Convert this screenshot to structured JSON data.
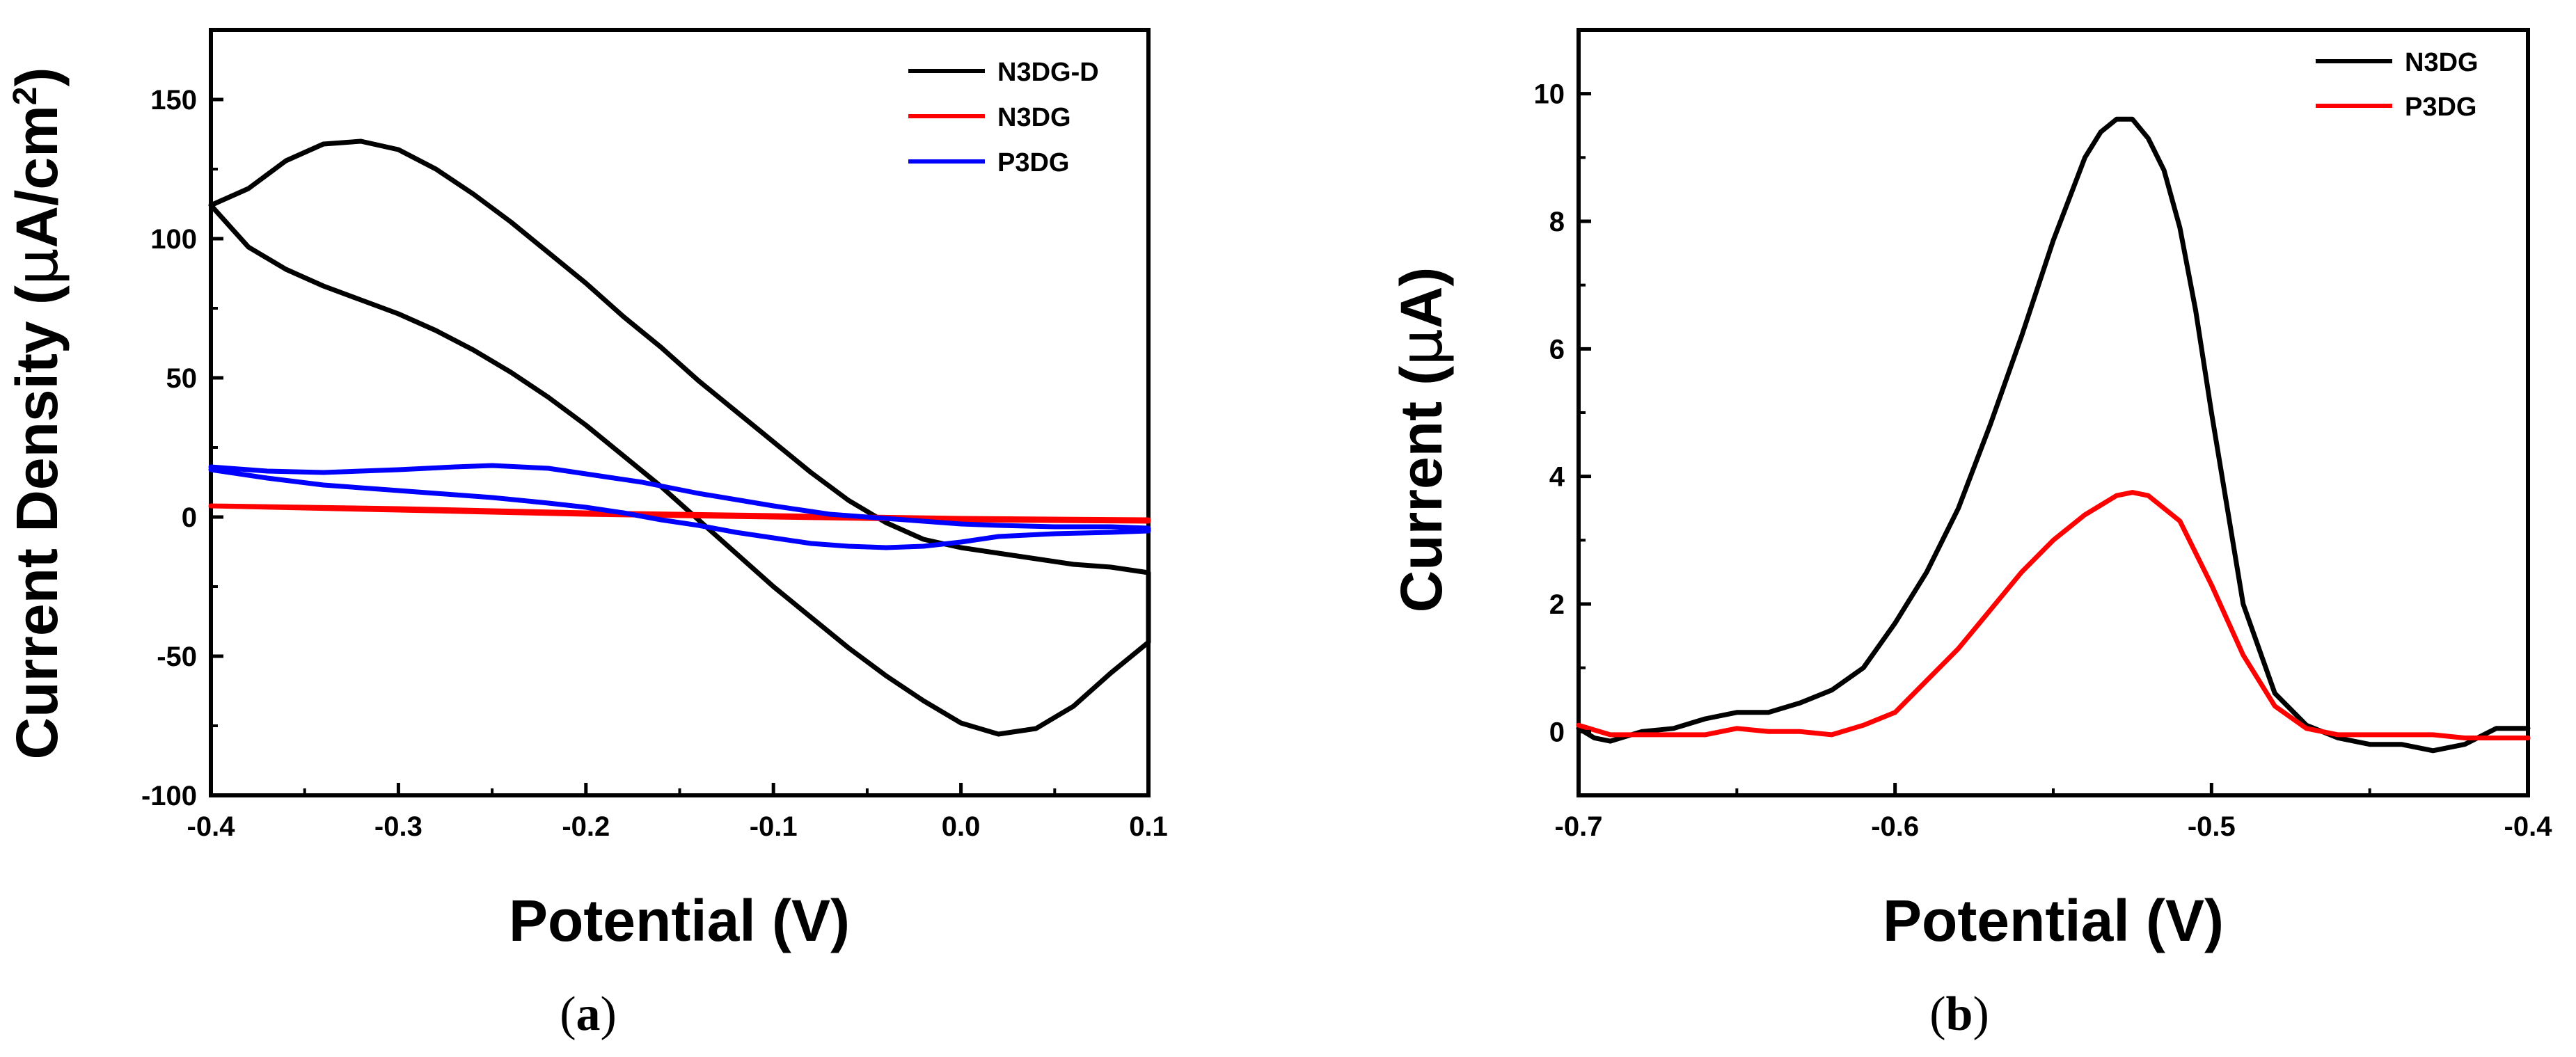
{
  "chart_data": [
    {
      "panel_label_open": "(",
      "panel_label_letter": "a",
      "panel_label_close": ")",
      "type": "line",
      "xlabel": "Potential (V)",
      "ylabel_main": "Current Density (",
      "ylabel_mu": "μ",
      "ylabel_unit": "A/cm",
      "ylabel_sup": "2",
      "ylabel_close": ")",
      "xlim": [
        -0.4,
        0.1
      ],
      "ylim": [
        -100,
        175
      ],
      "xticks": [
        -0.4,
        -0.3,
        -0.2,
        -0.1,
        0.0,
        0.1
      ],
      "xtick_labels": [
        "-0.4",
        "-0.3",
        "-0.2",
        "-0.1",
        "0.0",
        "0.1"
      ],
      "yticks": [
        -100,
        -50,
        0,
        50,
        100,
        150
      ],
      "ytick_labels": [
        "-100",
        "-50",
        "0",
        "50",
        "100",
        "150"
      ],
      "legend_position": "top-right",
      "series": [
        {
          "name": "N3DG-D",
          "color": "#000000",
          "x": [
            -0.4,
            -0.38,
            -0.36,
            -0.34,
            -0.32,
            -0.3,
            -0.28,
            -0.26,
            -0.24,
            -0.22,
            -0.2,
            -0.18,
            -0.16,
            -0.14,
            -0.12,
            -0.1,
            -0.08,
            -0.06,
            -0.04,
            -0.02,
            0.0,
            0.02,
            0.04,
            0.06,
            0.08,
            0.1,
            0.1,
            0.08,
            0.06,
            0.04,
            0.02,
            0.0,
            -0.02,
            -0.04,
            -0.06,
            -0.08,
            -0.1,
            -0.12,
            -0.14,
            -0.16,
            -0.18,
            -0.2,
            -0.22,
            -0.24,
            -0.26,
            -0.28,
            -0.3,
            -0.32,
            -0.34,
            -0.36,
            -0.38,
            -0.4
          ],
          "y": [
            112,
            118,
            128,
            134,
            135,
            132,
            125,
            116,
            106,
            95,
            84,
            72,
            61,
            49,
            38,
            27,
            16,
            6,
            -2,
            -8,
            -11,
            -13,
            -15,
            -17,
            -18,
            -20,
            -45,
            -56,
            -68,
            -76,
            -78,
            -74,
            -66,
            -57,
            -47,
            -36,
            -25,
            -13,
            -1,
            11,
            22,
            33,
            43,
            52,
            60,
            67,
            73,
            78,
            83,
            89,
            97,
            112
          ]
        },
        {
          "name": "N3DG",
          "color": "#ff0000",
          "x": [
            -0.4,
            -0.3,
            -0.2,
            -0.1,
            0.0,
            0.1,
            0.1,
            0.0,
            -0.1,
            -0.2,
            -0.3,
            -0.4
          ],
          "y": [
            4,
            3,
            1.5,
            0.5,
            -0.5,
            -1,
            -1.5,
            -1,
            0,
            1,
            2.5,
            4
          ]
        },
        {
          "name": "P3DG",
          "color": "#0000ff",
          "x": [
            -0.4,
            -0.37,
            -0.34,
            -0.3,
            -0.27,
            -0.25,
            -0.22,
            -0.2,
            -0.17,
            -0.14,
            -0.1,
            -0.07,
            -0.04,
            -0.02,
            0.0,
            0.02,
            0.05,
            0.08,
            0.1,
            0.1,
            0.08,
            0.05,
            0.02,
            0.0,
            -0.02,
            -0.04,
            -0.06,
            -0.08,
            -0.1,
            -0.12,
            -0.14,
            -0.16,
            -0.18,
            -0.2,
            -0.22,
            -0.25,
            -0.28,
            -0.31,
            -0.34,
            -0.37,
            -0.4
          ],
          "y": [
            18,
            16.5,
            16,
            17,
            18,
            18.5,
            17.5,
            15.5,
            12.5,
            8.5,
            4,
            1,
            -0.5,
            -1.5,
            -2.5,
            -3,
            -3.5,
            -3.5,
            -4,
            -5,
            -5.5,
            -6,
            -7,
            -9,
            -10.5,
            -11,
            -10.5,
            -9.5,
            -7.5,
            -5.5,
            -3,
            -1,
            1.5,
            3.5,
            5,
            7,
            8.5,
            10,
            11.5,
            14,
            17
          ]
        }
      ]
    },
    {
      "panel_label_open": "(",
      "panel_label_letter": "b",
      "panel_label_close": ")",
      "type": "line",
      "xlabel": "Potential (V)",
      "ylabel_main": "Current (",
      "ylabel_mu": "μ",
      "ylabel_unit": "A",
      "ylabel_close": ")",
      "xlim": [
        -0.7,
        -0.4
      ],
      "ylim": [
        -1,
        11
      ],
      "xticks": [
        -0.7,
        -0.6,
        -0.5,
        -0.4
      ],
      "xtick_labels": [
        "-0.7",
        "-0.6",
        "-0.5",
        "-0.4"
      ],
      "yticks": [
        0,
        2,
        4,
        6,
        8,
        10
      ],
      "ytick_labels": [
        "0",
        "2",
        "4",
        "6",
        "8",
        "10"
      ],
      "legend_position": "top-right",
      "series": [
        {
          "name": "N3DG",
          "color": "#000000",
          "x": [
            -0.7,
            -0.695,
            -0.69,
            -0.68,
            -0.67,
            -0.66,
            -0.65,
            -0.64,
            -0.63,
            -0.62,
            -0.61,
            -0.6,
            -0.59,
            -0.58,
            -0.57,
            -0.56,
            -0.55,
            -0.54,
            -0.535,
            -0.53,
            -0.525,
            -0.52,
            -0.515,
            -0.51,
            -0.505,
            -0.5,
            -0.49,
            -0.48,
            -0.47,
            -0.46,
            -0.45,
            -0.44,
            -0.43,
            -0.42,
            -0.41,
            -0.4
          ],
          "y": [
            0.05,
            -0.1,
            -0.15,
            0,
            0.05,
            0.2,
            0.3,
            0.3,
            0.45,
            0.65,
            1.0,
            1.7,
            2.5,
            3.5,
            4.8,
            6.2,
            7.7,
            9.0,
            9.4,
            9.6,
            9.6,
            9.3,
            8.8,
            7.9,
            6.6,
            5.0,
            2.0,
            0.6,
            0.1,
            -0.1,
            -0.2,
            -0.2,
            -0.3,
            -0.2,
            0.05,
            0.05
          ]
        },
        {
          "name": "P3DG",
          "color": "#ff0000",
          "x": [
            -0.7,
            -0.69,
            -0.68,
            -0.67,
            -0.66,
            -0.65,
            -0.64,
            -0.63,
            -0.62,
            -0.61,
            -0.6,
            -0.59,
            -0.58,
            -0.57,
            -0.56,
            -0.55,
            -0.54,
            -0.53,
            -0.525,
            -0.52,
            -0.51,
            -0.5,
            -0.49,
            -0.48,
            -0.47,
            -0.46,
            -0.45,
            -0.44,
            -0.43,
            -0.42,
            -0.41,
            -0.4
          ],
          "y": [
            0.1,
            -0.05,
            -0.05,
            -0.05,
            -0.05,
            0.05,
            0.0,
            0.0,
            -0.05,
            0.1,
            0.3,
            0.8,
            1.3,
            1.9,
            2.5,
            3.0,
            3.4,
            3.7,
            3.75,
            3.7,
            3.3,
            2.3,
            1.2,
            0.4,
            0.05,
            -0.05,
            -0.05,
            -0.05,
            -0.05,
            -0.1,
            -0.1,
            -0.1
          ]
        }
      ]
    }
  ]
}
